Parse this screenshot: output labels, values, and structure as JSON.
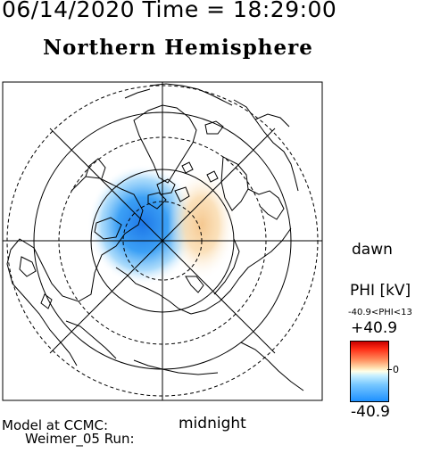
{
  "header": {
    "timestamp": "06/14/2020 Time = 18:29:00",
    "title": "Northern Hemisphere"
  },
  "map": {
    "orientation_labels": {
      "dawn": "dawn",
      "midnight": "midnight"
    },
    "projection": "polar",
    "data_source": {
      "line1": "Model at CCMC:",
      "line2": "Weimer_05 Run:"
    }
  },
  "colorbar": {
    "title": "PHI [kV]",
    "range_text": "-40.9<PHI<13",
    "max_label": "+40.9",
    "zero_label": "0",
    "min_label": "-40.9",
    "max_value": 40.9,
    "min_value": -40.9,
    "colors": {
      "high": "#c80000",
      "mid": "#ffffe8",
      "low": "#1e90ff"
    }
  },
  "potential_cells": [
    {
      "sign": "negative",
      "peak_kV": -40.9,
      "side": "dusk/noon"
    },
    {
      "sign": "positive",
      "peak_kV": 13,
      "side": "dawn"
    }
  ]
}
